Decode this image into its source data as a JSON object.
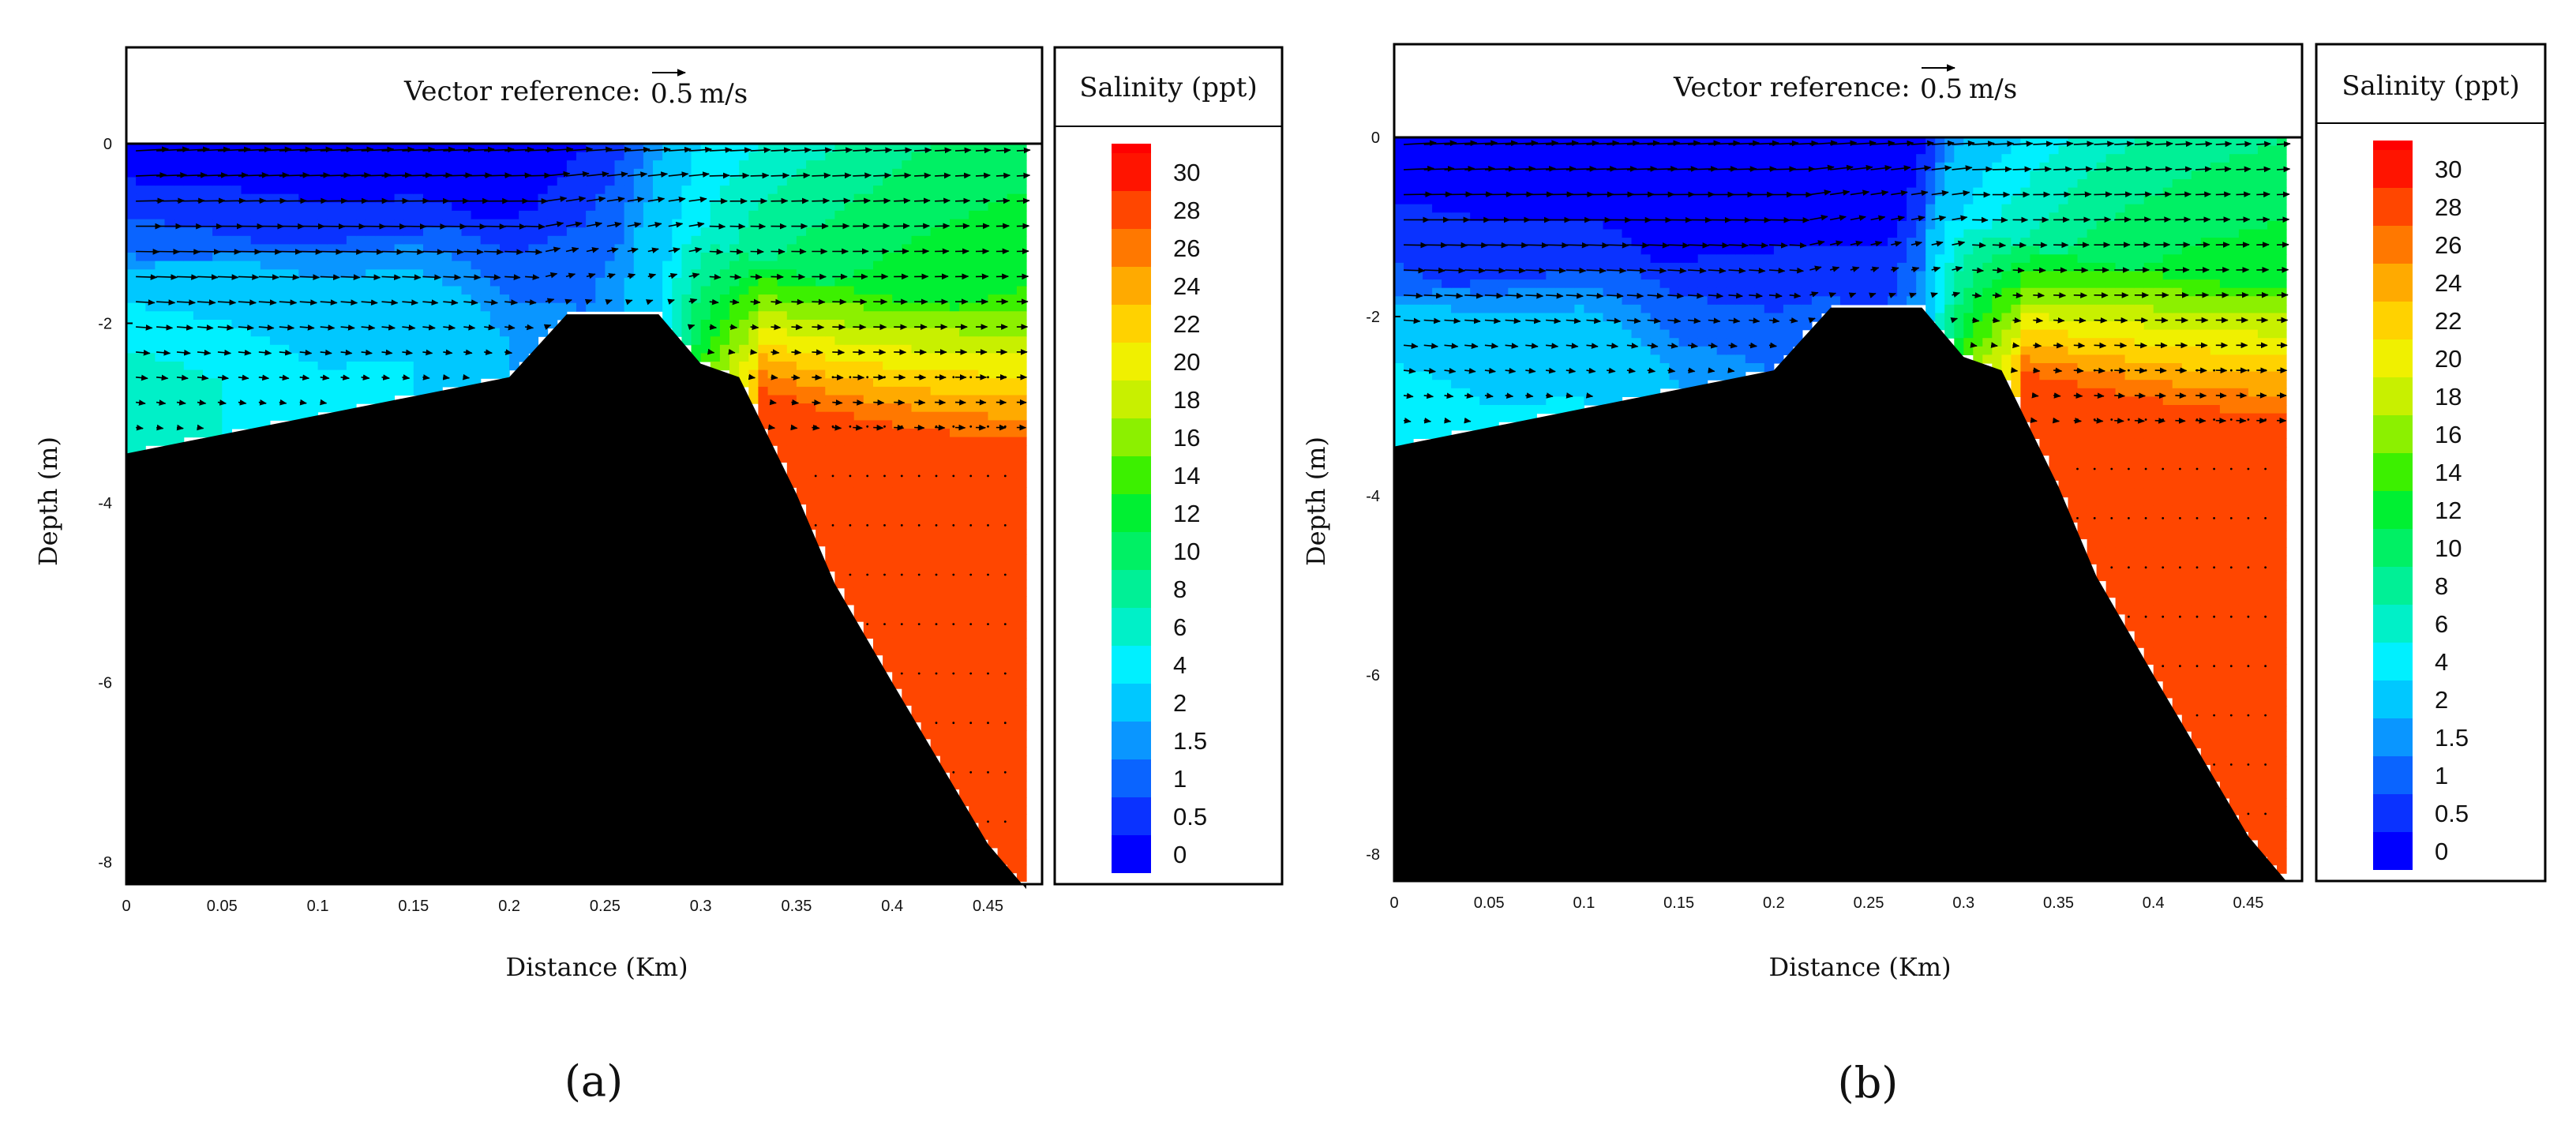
{
  "chart_data": [
    {
      "type": "heatmap",
      "panel_label": "(a)",
      "vector_reference_prefix": "Vector reference:",
      "vector_reference_value": "0.5",
      "vector_reference_unit": "m/s",
      "colorbar_title": "Salinity (ppt)",
      "xlabel": "Distance (Km)",
      "ylabel": "Depth (m)",
      "xlim": [
        0,
        0.47
      ],
      "ylim": [
        -8.3,
        1.1
      ],
      "x_ticks": [
        "0",
        "0.05",
        "0.1",
        "0.15",
        "0.2",
        "0.25",
        "0.3",
        "0.35",
        "0.4",
        "0.45"
      ],
      "y_ticks": [
        "0",
        "-2",
        "-4",
        "-6",
        "-8"
      ],
      "bathymetry": {
        "x": [
          0,
          0.2,
          0.23,
          0.278,
          0.3,
          0.32,
          0.35,
          0.37,
          0.4,
          0.45,
          0.47
        ],
        "depth": [
          -3.45,
          -2.6,
          -1.9,
          -1.9,
          -2.45,
          -2.6,
          -3.9,
          -4.9,
          -6.0,
          -7.8,
          -8.3
        ]
      },
      "salinity_profile": {
        "x": [
          0,
          0.05,
          0.1,
          0.15,
          0.2,
          0.24,
          0.26,
          0.28,
          0.3,
          0.33,
          0.37,
          0.42,
          0.47
        ],
        "mixed_layer_depth": [
          -1.4,
          -1.25,
          -1.1,
          -1.0,
          -0.85,
          -0.5,
          -0.6,
          -0.7,
          -1.1,
          -1.3,
          -1.6,
          -1.8,
          -1.9
        ],
        "surface_salinity": [
          0,
          0,
          0,
          0,
          0,
          0.5,
          1,
          2,
          4,
          6,
          8,
          10,
          11
        ],
        "bottom_salinity": [
          8,
          6,
          4,
          4,
          2,
          1.5,
          2,
          4,
          14,
          24,
          28,
          28,
          28
        ],
        "deep_water_salinity": 28
      },
      "velocity": {
        "surface_speed_mps": [
          0.5,
          0.5,
          0.5,
          0.5,
          0.45,
          0.4,
          0.35,
          0.35,
          0.35,
          0.3,
          0.3,
          0.25,
          0.2
        ],
        "surface_direction": "seaward (right), weakening with depth"
      }
    },
    {
      "type": "heatmap",
      "panel_label": "(b)",
      "vector_reference_prefix": "Vector reference:",
      "vector_reference_value": "0.5",
      "vector_reference_unit": "m/s",
      "colorbar_title": "Salinity (ppt)",
      "xlabel": "Distance (Km)",
      "ylabel": "Depth (m)",
      "xlim": [
        0,
        0.47
      ],
      "ylim": [
        -8.3,
        1.1
      ],
      "x_ticks": [
        "0",
        "0.05",
        "0.1",
        "0.15",
        "0.2",
        "0.25",
        "0.3",
        "0.35",
        "0.4",
        "0.45"
      ],
      "y_ticks": [
        "0",
        "-2",
        "-4",
        "-6",
        "-8"
      ],
      "bathymetry": {
        "x": [
          0,
          0.2,
          0.23,
          0.278,
          0.3,
          0.32,
          0.35,
          0.37,
          0.4,
          0.45,
          0.47
        ],
        "depth": [
          -3.45,
          -2.6,
          -1.9,
          -1.9,
          -2.45,
          -2.6,
          -3.9,
          -4.9,
          -6.0,
          -7.8,
          -8.3
        ]
      },
      "salinity_profile": {
        "x": [
          0,
          0.05,
          0.1,
          0.15,
          0.2,
          0.24,
          0.26,
          0.28,
          0.3,
          0.33,
          0.37,
          0.42,
          0.47
        ],
        "mixed_layer_depth": [
          -1.8,
          -1.6,
          -1.5,
          -1.4,
          -1.2,
          -0.9,
          -1.0,
          -0.7,
          -1.0,
          -1.2,
          -1.4,
          -1.6,
          -1.7
        ],
        "surface_salinity": [
          0,
          0,
          0,
          0,
          0,
          0,
          0,
          0.5,
          2,
          4,
          7,
          9,
          10
        ],
        "bottom_salinity": [
          6,
          4,
          4,
          2,
          1.5,
          1,
          1,
          2,
          14,
          24,
          28,
          28,
          28
        ],
        "deep_water_salinity": 28
      },
      "velocity": {
        "surface_speed_mps": [
          0.5,
          0.5,
          0.5,
          0.5,
          0.45,
          0.4,
          0.35,
          0.35,
          0.35,
          0.3,
          0.3,
          0.25,
          0.2
        ],
        "surface_direction": "seaward (right), weakening with depth"
      }
    }
  ],
  "colorbar": {
    "levels": [
      0,
      0.5,
      1,
      1.5,
      2,
      4,
      6,
      8,
      10,
      12,
      14,
      16,
      18,
      20,
      22,
      24,
      26,
      28,
      30
    ],
    "labels": [
      "30",
      "28",
      "26",
      "24",
      "22",
      "20",
      "18",
      "16",
      "14",
      "12",
      "10",
      "8",
      "6",
      "4",
      "2",
      "1.5",
      "1",
      "0.5",
      "0"
    ],
    "colors": [
      "#0000ff",
      "#0a32ff",
      "#0a64ff",
      "#0a96ff",
      "#00c8ff",
      "#00f0ff",
      "#00f0c8",
      "#00f096",
      "#00f064",
      "#00f032",
      "#3cf000",
      "#8cf000",
      "#c8f000",
      "#f0f000",
      "#ffd200",
      "#ffaa00",
      "#ff7800",
      "#ff4600",
      "#ff1400"
    ]
  }
}
